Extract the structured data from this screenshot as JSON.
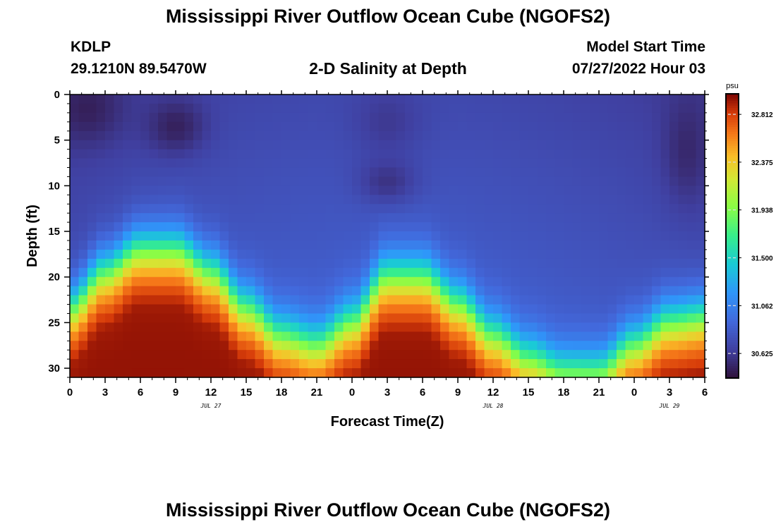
{
  "header": {
    "title": "Mississippi River Outflow Ocean Cube (NGOFS2)",
    "station": "KDLP",
    "coords": "29.1210N  89.5470W",
    "subtitle": "2-D Salinity at Depth",
    "start_label": "Model Start Time",
    "start_value": "07/27/2022 Hour 03"
  },
  "footer": {
    "title": "Mississippi River Outflow Ocean Cube (NGOFS2)"
  },
  "colors": {
    "background": "#ffffff",
    "axis": "#000000"
  },
  "chart_data": {
    "type": "heatmap",
    "xlabel": "Forecast Time(Z)",
    "ylabel": "Depth (ft)",
    "x_hours_range": [
      0,
      54
    ],
    "x_ticks": [
      "0",
      "3",
      "6",
      "9",
      "12",
      "15",
      "18",
      "21",
      "0",
      "3",
      "6",
      "9",
      "12",
      "15",
      "18",
      "21",
      "0",
      "3",
      "6"
    ],
    "date_labels": [
      {
        "label": "JUL 27",
        "hour": 12
      },
      {
        "label": "JUL 28",
        "hour": 36
      },
      {
        "label": "JUL 29",
        "hour": 51
      }
    ],
    "y_range": [
      0,
      31
    ],
    "y_ticks": [
      0,
      5,
      10,
      15,
      20,
      25,
      30
    ],
    "colorbar": {
      "unit": "psu",
      "range": [
        30.4,
        33.0
      ],
      "ticks": [
        "32.812",
        "32.375",
        "31.938",
        "31.500",
        "31.062",
        "30.625"
      ],
      "colormap": "turbo"
    },
    "salinity_field": {
      "description_units": "psu",
      "surface_low_psu": 30.45,
      "bottom_high_psu": 32.95,
      "halocline_depth_ft": [
        {
          "hour": 0,
          "depth": 23
        },
        {
          "hour": 3,
          "depth": 19
        },
        {
          "hour": 6,
          "depth": 16.5
        },
        {
          "hour": 9,
          "depth": 16.5
        },
        {
          "hour": 12,
          "depth": 19
        },
        {
          "hour": 15,
          "depth": 23
        },
        {
          "hour": 18,
          "depth": 26
        },
        {
          "hour": 21,
          "depth": 27
        },
        {
          "hour": 24,
          "depth": 24.5
        },
        {
          "hour": 27,
          "depth": 19.5
        },
        {
          "hour": 30,
          "depth": 19.5
        },
        {
          "hour": 33,
          "depth": 22.5
        },
        {
          "hour": 36,
          "depth": 26
        },
        {
          "hour": 39,
          "depth": 28.5
        },
        {
          "hour": 42,
          "depth": 30
        },
        {
          "hour": 45,
          "depth": 30
        },
        {
          "hour": 48,
          "depth": 27
        },
        {
          "hour": 51,
          "depth": 24.5
        },
        {
          "hour": 54,
          "depth": 24
        }
      ],
      "fresh_lenses": [
        {
          "hour": 1.5,
          "depth": 1.5,
          "depth_extent": 4,
          "hour_extent": 3,
          "psu": 30.45
        },
        {
          "hour": 9,
          "depth": 3.5,
          "depth_extent": 3,
          "hour_extent": 2.5,
          "psu": 30.45
        },
        {
          "hour": 27,
          "depth": 9.5,
          "depth_extent": 2.5,
          "hour_extent": 2.5,
          "psu": 30.55
        },
        {
          "hour": 27,
          "depth": 3,
          "depth_extent": 4,
          "hour_extent": 3,
          "psu": 30.6
        },
        {
          "hour": 52.5,
          "depth": 6,
          "depth_extent": 6,
          "hour_extent": 2,
          "psu": 30.5
        }
      ]
    }
  }
}
